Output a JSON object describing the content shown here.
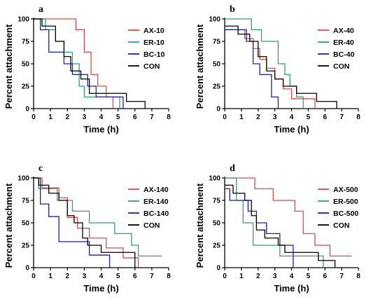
{
  "chart_data": [
    {
      "type": "line",
      "panel": "a",
      "xlabel": "Time (h)",
      "ylabel": "Percent attachment",
      "xlim": [
        0,
        8
      ],
      "ylim": [
        0,
        100
      ],
      "xticks": [
        "0",
        "1",
        "2",
        "3",
        "4",
        "5",
        "6",
        "7",
        "8"
      ],
      "yticks": [
        "0",
        "25",
        "50",
        "75",
        "100"
      ],
      "legend_position": "right",
      "series": [
        {
          "name": "AX-10",
          "color": "#e8474a",
          "x": [
            0,
            2.5,
            3.0,
            3.4,
            3.8,
            4.3,
            4.7
          ],
          "y": [
            100,
            88,
            63,
            38,
            25,
            13,
            0
          ]
        },
        {
          "name": "ER-10",
          "color": "#2aa574",
          "x": [
            0,
            0.7,
            1.3,
            1.8,
            2.3,
            2.7,
            3.0,
            5.1
          ],
          "y": [
            100,
            88,
            75,
            63,
            50,
            25,
            13,
            0
          ]
        },
        {
          "name": "BC-10",
          "color": "#1c1cc4",
          "x": [
            0,
            0.4,
            0.9,
            1.8,
            2.3,
            3.2,
            3.7,
            5.3
          ],
          "y": [
            100,
            88,
            63,
            50,
            38,
            25,
            13,
            0
          ]
        },
        {
          "name": "CON",
          "color": "#000000",
          "x": [
            0,
            0.5,
            1.3,
            1.8,
            2.2,
            2.8,
            3.3,
            5.5,
            6.6
          ],
          "y": [
            100,
            92,
            75,
            58,
            42,
            33,
            17,
            8,
            0
          ]
        }
      ]
    },
    {
      "type": "line",
      "panel": "b",
      "xlabel": "Time (h)",
      "ylabel": "Percent attachment",
      "xlim": [
        0,
        8
      ],
      "ylim": [
        0,
        100
      ],
      "xticks": [
        "0",
        "1",
        "2",
        "3",
        "4",
        "5",
        "6",
        "7",
        "8"
      ],
      "yticks": [
        "0",
        "25",
        "50",
        "75",
        "100"
      ],
      "legend_position": "right",
      "series": [
        {
          "name": "AX-40",
          "color": "#e8474a",
          "x": [
            0,
            1.2,
            1.7,
            2.1,
            2.5,
            3.0,
            3.5,
            4.0,
            5.4
          ],
          "y": [
            88,
            78,
            67,
            55,
            45,
            33,
            22,
            11,
            0
          ]
        },
        {
          "name": "ER-40",
          "color": "#2aa574",
          "x": [
            0,
            1.6,
            2.2,
            3.2,
            3.6,
            3.9,
            4.3,
            4.7
          ],
          "y": [
            100,
            88,
            75,
            50,
            38,
            25,
            13,
            0
          ]
        },
        {
          "name": "BC-40",
          "color": "#1c1cc4",
          "x": [
            0,
            1.3,
            1.7,
            2.1,
            2.8,
            3.2
          ],
          "y": [
            88,
            75,
            50,
            38,
            13,
            0
          ]
        },
        {
          "name": "CON",
          "color": "#000000",
          "x": [
            0,
            0.8,
            1.5,
            2.0,
            2.5,
            3.0,
            3.5,
            4.3,
            5.5,
            6.7
          ],
          "y": [
            92,
            83,
            75,
            58,
            42,
            33,
            25,
            17,
            8,
            0
          ]
        }
      ]
    },
    {
      "type": "line",
      "panel": "c",
      "xlabel": "Time (h)",
      "ylabel": "Percent attachment",
      "xlim": [
        0,
        8
      ],
      "ylim": [
        0,
        100
      ],
      "xticks": [
        "0",
        "1",
        "2",
        "3",
        "4",
        "5",
        "6",
        "7",
        "8"
      ],
      "yticks": [
        "0",
        "25",
        "50",
        "75",
        "100"
      ],
      "legend_position": "right",
      "series": [
        {
          "name": "AX-140",
          "color": "#e8474a",
          "x": [
            0,
            0.5,
            1.5,
            2.0,
            2.6,
            3.3,
            4.3,
            5.3,
            6.2
          ],
          "y": [
            100,
            89,
            78,
            56,
            44,
            33,
            22,
            11,
            0
          ]
        },
        {
          "name": "ER-140",
          "color": "#2aa574",
          "x": [
            0,
            0.3,
            1.4,
            2.3,
            3.3,
            4.8,
            5.8,
            6.2,
            7.6
          ],
          "y": [
            100,
            88,
            75,
            63,
            50,
            38,
            25,
            13,
            13
          ]
        },
        {
          "name": "BC-140",
          "color": "#1c1cc4",
          "x": [
            0,
            0.4,
            0.9,
            1.5,
            3.3,
            4.5
          ],
          "y": [
            100,
            71,
            57,
            29,
            14,
            0
          ]
        },
        {
          "name": "CON",
          "color": "#000000",
          "x": [
            0,
            0.3,
            0.9,
            1.5,
            2.0,
            2.4,
            2.9,
            3.2,
            4.0,
            6.0
          ],
          "y": [
            100,
            92,
            83,
            75,
            58,
            50,
            33,
            25,
            17,
            0
          ]
        }
      ]
    },
    {
      "type": "line",
      "panel": "d",
      "xlabel": "Time (h)",
      "ylabel": "Percent attachment",
      "xlim": [
        0,
        8
      ],
      "ylim": [
        0,
        100
      ],
      "xticks": [
        "0",
        "1",
        "2",
        "3",
        "4",
        "5",
        "6",
        "7",
        "8"
      ],
      "yticks": [
        "0",
        "25",
        "50",
        "75",
        "100"
      ],
      "legend_position": "right",
      "series": [
        {
          "name": "AX-500",
          "color": "#e8474a",
          "x": [
            0,
            1.8,
            2.9,
            4.2,
            4.7,
            5.4,
            6.3,
            7.6
          ],
          "y": [
            100,
            88,
            75,
            63,
            38,
            25,
            13,
            13
          ]
        },
        {
          "name": "ER-500",
          "color": "#2aa574",
          "x": [
            0,
            0.7,
            1.1,
            1.7,
            3.3,
            5.9
          ],
          "y": [
            100,
            75,
            50,
            25,
            13,
            0
          ]
        },
        {
          "name": "BC-500",
          "color": "#1c1cc4",
          "x": [
            0,
            0.3,
            1.4,
            1.9,
            2.5,
            3.3,
            4.1
          ],
          "y": [
            88,
            75,
            63,
            50,
            38,
            25,
            0
          ]
        },
        {
          "name": "CON",
          "color": "#000000",
          "x": [
            0,
            0.5,
            1.2,
            1.6,
            1.9,
            2.4,
            3.2,
            3.6,
            5.6,
            6.6
          ],
          "y": [
            92,
            83,
            75,
            58,
            42,
            33,
            25,
            17,
            8,
            0
          ]
        }
      ]
    }
  ]
}
